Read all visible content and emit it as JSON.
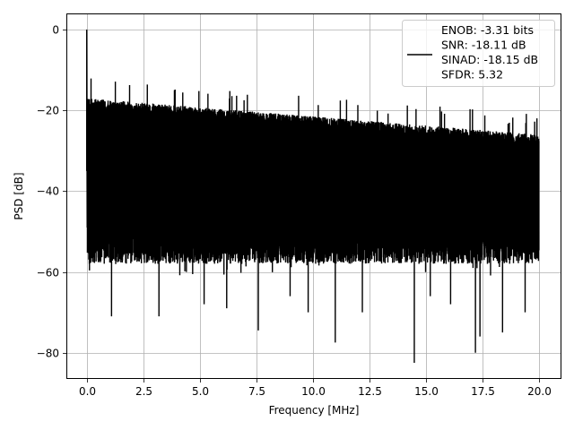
{
  "chart_data": {
    "type": "line",
    "title": "",
    "xlabel": "Frequency [MHz]",
    "ylabel": "PSD [dB]",
    "xlim": [
      -0.9,
      21.0
    ],
    "ylim": [
      -86.5,
      4.0
    ],
    "xticks": [
      0.0,
      2.5,
      5.0,
      7.5,
      10.0,
      12.5,
      15.0,
      17.5,
      20.0
    ],
    "xtick_labels": [
      "0.0",
      "2.5",
      "5.0",
      "7.5",
      "10.0",
      "12.5",
      "15.0",
      "17.5",
      "20.0"
    ],
    "yticks": [
      0,
      -20,
      -40,
      -60,
      -80
    ],
    "ytick_labels": [
      "0",
      "−20",
      "−40",
      "−60",
      "−80"
    ],
    "grid": true,
    "legend_position": "top-right",
    "series": [
      {
        "color": "#000000",
        "legend_lines": [
          "ENOB: -3.31 bits",
          "SNR: -18.11 dB",
          "SINAD: -18.15 dB",
          "SFDR: 5.32"
        ],
        "peak": {
          "x": 0.0,
          "y": 0.0
        },
        "x_range": [
          0.0,
          20.0
        ],
        "upper_envelope_start": -17.0,
        "upper_envelope_end": -26.0,
        "typical_floor": -50.0,
        "deep_nulls": [
          {
            "x": 1.1,
            "y": -71
          },
          {
            "x": 3.2,
            "y": -71
          },
          {
            "x": 5.2,
            "y": -68
          },
          {
            "x": 6.2,
            "y": -69
          },
          {
            "x": 7.6,
            "y": -74.5
          },
          {
            "x": 9.0,
            "y": -66
          },
          {
            "x": 9.8,
            "y": -70
          },
          {
            "x": 11.0,
            "y": -77.5
          },
          {
            "x": 12.2,
            "y": -70
          },
          {
            "x": 14.5,
            "y": -82.5
          },
          {
            "x": 15.2,
            "y": -66
          },
          {
            "x": 16.1,
            "y": -68
          },
          {
            "x": 17.2,
            "y": -80
          },
          {
            "x": 17.4,
            "y": -76
          },
          {
            "x": 18.4,
            "y": -75
          },
          {
            "x": 19.4,
            "y": -70
          }
        ]
      }
    ]
  }
}
